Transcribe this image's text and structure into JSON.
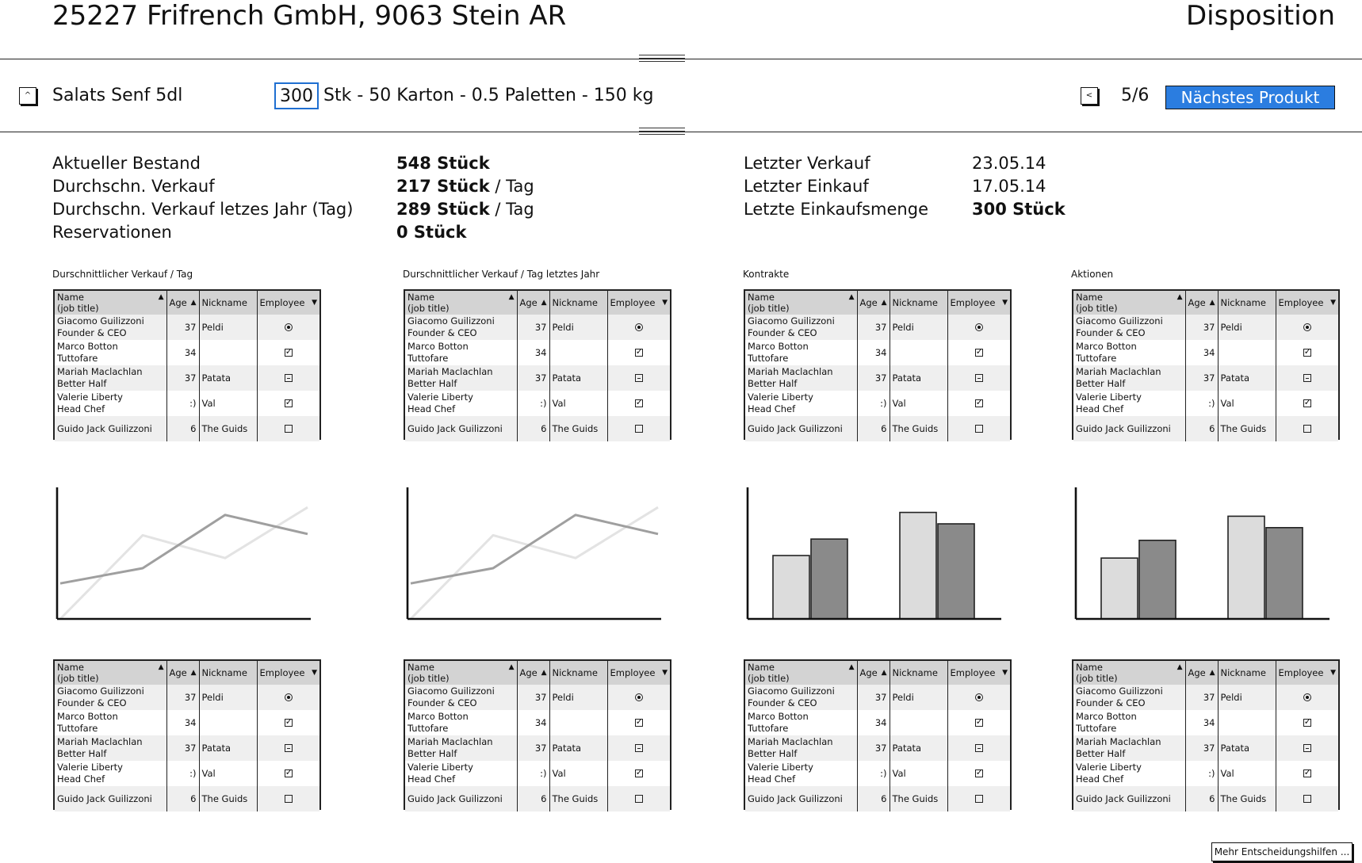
{
  "header": {
    "title": "25227 Frifrench GmbH, 9063 Stein AR",
    "mode": "Disposition"
  },
  "toolbar": {
    "collapse_icon": "chevron-up-icon",
    "product": "Salats Senf 5dl",
    "quantity": "300",
    "quantity_text": "Stk  -  50 Karton  -  0.5 Paletten  -  150 kg",
    "prev_icon": "chevron-left-icon",
    "prev_symbol": "<",
    "collapse_symbol": "^",
    "page": "5/6",
    "next_label": "Nächstes Produkt"
  },
  "stats_left": [
    {
      "label": "Aktueller Bestand",
      "value": "548 Stück",
      "unit": ""
    },
    {
      "label": "Durchschn. Verkauf",
      "value": "217 Stück",
      "unit": " / Tag"
    },
    {
      "label": "Durchschn. Verkauf letzes Jahr (Tag)",
      "value": "289 Stück",
      "unit": " / Tag"
    },
    {
      "label": "Reservationen",
      "value": "0 Stück",
      "unit": ""
    }
  ],
  "stats_right": [
    {
      "label": "Letzter Verkauf",
      "value": "23.05.14",
      "bold": false
    },
    {
      "label": "Letzter Einkauf",
      "value": "17.05.14",
      "bold": false
    },
    {
      "label": "Letzte Einkaufsmenge",
      "value": "300 Stück",
      "bold": true
    }
  ],
  "panels": [
    {
      "label": "Durschnittlicher Verkauf / Tag",
      "chart": "line"
    },
    {
      "label": "Durschnittlicher Verkauf / Tag letztes Jahr",
      "chart": "line"
    },
    {
      "label": "Kontrakte",
      "chart": "bar"
    },
    {
      "label": "Aktionen",
      "chart": "bar"
    }
  ],
  "table": {
    "headers": [
      "Name",
      "(job title)",
      "Age",
      "Nickname",
      "Employee"
    ],
    "rows": [
      {
        "name": "Giacomo Guilizzoni",
        "title": "Founder & CEO",
        "age": "37",
        "nick": "Peldi",
        "emp": "radio"
      },
      {
        "name": "Marco Botton",
        "title": "Tuttofare",
        "age": "34",
        "nick": "",
        "emp": "checked"
      },
      {
        "name": "Mariah Maclachlan",
        "title": "Better Half",
        "age": "37",
        "nick": "Patata",
        "emp": "indet"
      },
      {
        "name": "Valerie Liberty",
        "title": "Head Chef",
        "age": ":)",
        "nick": "Val",
        "emp": "checked"
      },
      {
        "name": "Guido Jack Guilizzoni",
        "title": "",
        "age": "6",
        "nick": "The Guids",
        "emp": "empty"
      }
    ]
  },
  "chart_data": [
    {
      "type": "line",
      "series": [
        {
          "values": [
            0,
            66,
            48,
            88
          ]
        },
        {
          "values": [
            28,
            40,
            82,
            67
          ]
        }
      ],
      "ylim": [
        0,
        100
      ]
    },
    {
      "type": "line",
      "series": [
        {
          "values": [
            0,
            66,
            48,
            88
          ]
        },
        {
          "values": [
            28,
            40,
            82,
            67
          ]
        }
      ],
      "ylim": [
        0,
        100
      ]
    },
    {
      "type": "bar",
      "series": [
        {
          "values": [
            50,
            84
          ]
        },
        {
          "values": [
            63,
            75
          ]
        }
      ],
      "ylim": [
        0,
        100
      ]
    },
    {
      "type": "bar",
      "series": [
        {
          "values": [
            48,
            81
          ]
        },
        {
          "values": [
            62,
            72
          ]
        }
      ],
      "ylim": [
        0,
        100
      ]
    }
  ],
  "colors": {
    "accent": "#2b7de0",
    "series_light": "#dcdcdc",
    "series_dark": "#8a8a8a",
    "line_light": "#e3e3e3",
    "line_dark": "#9f9f9f",
    "header_bg": "#d3d3d3"
  },
  "footer": {
    "more_label": "Mehr Entscheidungshilfen ..."
  }
}
